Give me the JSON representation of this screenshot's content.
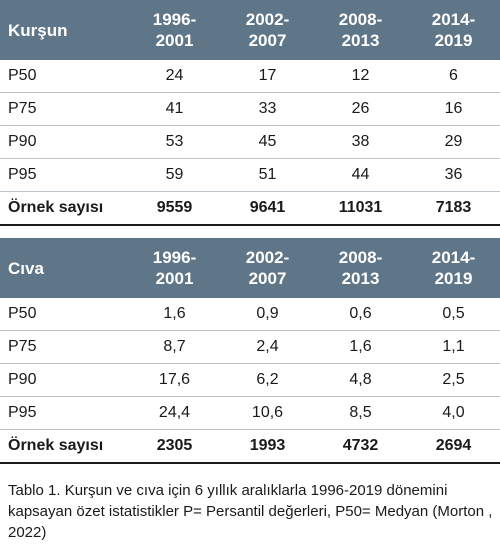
{
  "tables": [
    {
      "label": "Kurşun",
      "periods": [
        [
          "1996-",
          "2001"
        ],
        [
          "2002-",
          "2007"
        ],
        [
          "2008-",
          "2013"
        ],
        [
          "2014-",
          "2019"
        ]
      ],
      "rows": [
        {
          "label": "P50",
          "values": [
            "24",
            "17",
            "12",
            "6"
          ]
        },
        {
          "label": "P75",
          "values": [
            "41",
            "33",
            "26",
            "16"
          ]
        },
        {
          "label": "P90",
          "values": [
            "53",
            "45",
            "38",
            "29"
          ]
        },
        {
          "label": "P95",
          "values": [
            "59",
            "51",
            "44",
            "36"
          ]
        }
      ],
      "total": {
        "label": "Örnek sayısı",
        "values": [
          "9559",
          "9641",
          "11031",
          "7183"
        ]
      }
    },
    {
      "label": "Cıva",
      "periods": [
        [
          "1996-",
          "2001"
        ],
        [
          "2002-",
          "2007"
        ],
        [
          "2008-",
          "2013"
        ],
        [
          "2014-",
          "2019"
        ]
      ],
      "rows": [
        {
          "label": "P50",
          "values": [
            "1,6",
            "0,9",
            "0,6",
            "0,5"
          ]
        },
        {
          "label": "P75",
          "values": [
            "8,7",
            "2,4",
            "1,6",
            "1,1"
          ]
        },
        {
          "label": "P90",
          "values": [
            "17,6",
            "6,2",
            "4,8",
            "2,5"
          ]
        },
        {
          "label": "P95",
          "values": [
            "24,4",
            "10,6",
            "8,5",
            "4,0"
          ]
        }
      ],
      "total": {
        "label": "Örnek sayısı",
        "values": [
          "2305",
          "1993",
          "4732",
          "2694"
        ]
      }
    }
  ],
  "caption": "Tablo 1. Kurşun ve cıva için 6 yıllık aralıklarla 1996-2019 dönemini kapsayan özet istatistikler P= Persantil değerleri, P50= Medyan (Morton , 2022)"
}
